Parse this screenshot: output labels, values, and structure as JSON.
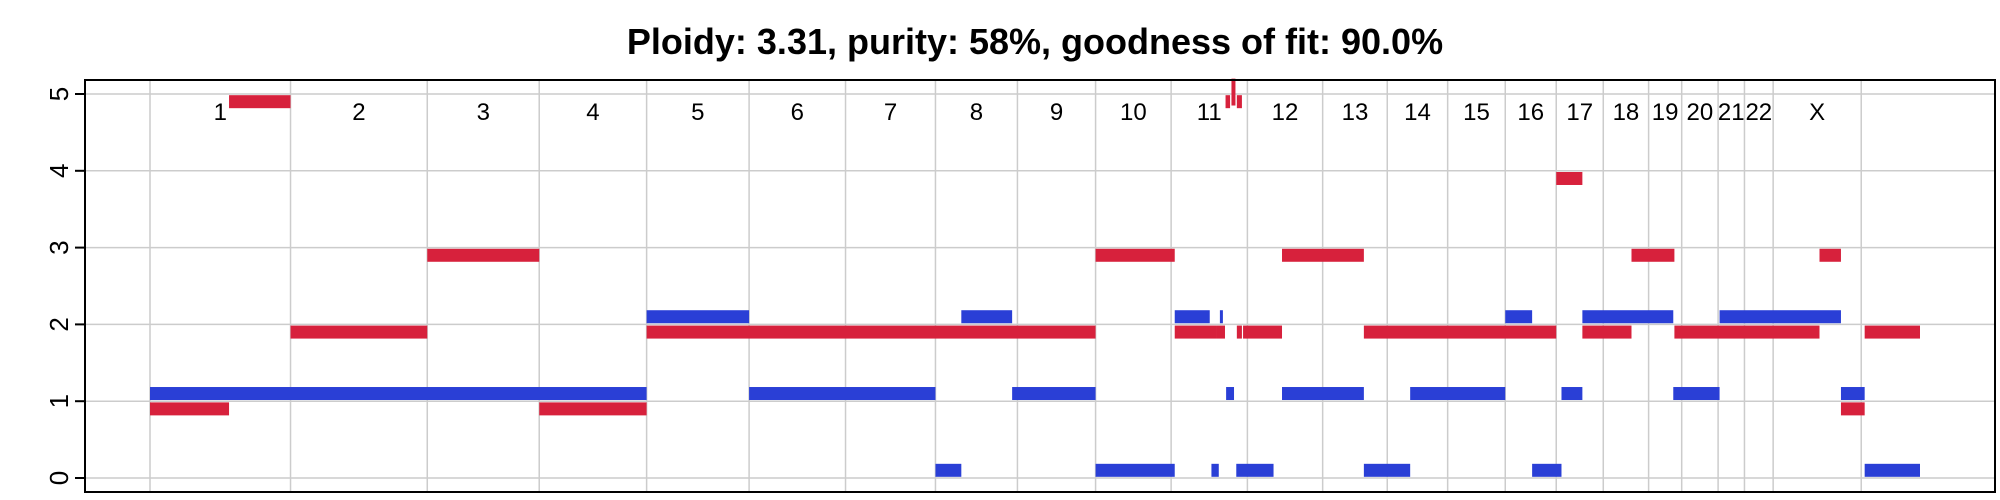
{
  "chart_data": {
    "type": "segments",
    "title": "Ploidy: 3.31, purity: 58%, goodness of fit: 90.0%",
    "xlabel": "",
    "ylabel": "",
    "ylim": [
      0,
      5
    ],
    "yticks": [
      "0",
      "1",
      "2",
      "3",
      "4",
      "5"
    ],
    "grid": true,
    "colors": {
      "major": "#d7213c",
      "minor": "#2a3fd6",
      "grid": "#cccccc",
      "frame": "#000000"
    },
    "chromosomes": [
      {
        "name": "1",
        "start": 0,
        "end": 248.9
      },
      {
        "name": "2",
        "start": 248.9,
        "end": 491.1
      },
      {
        "name": "3",
        "start": 491.1,
        "end": 689.4
      },
      {
        "name": "4",
        "start": 689.4,
        "end": 879.6
      },
      {
        "name": "5",
        "start": 879.6,
        "end": 1061.1
      },
      {
        "name": "6",
        "start": 1061.1,
        "end": 1231.9
      },
      {
        "name": "7",
        "start": 1231.9,
        "end": 1391.2
      },
      {
        "name": "8",
        "start": 1391.2,
        "end": 1536.4
      },
      {
        "name": "9",
        "start": 1536.4,
        "end": 1674.8
      },
      {
        "name": "10",
        "start": 1674.8,
        "end": 1808.6
      },
      {
        "name": "11",
        "start": 1808.6,
        "end": 1943.7
      },
      {
        "name": "12",
        "start": 1943.7,
        "end": 2077.0
      },
      {
        "name": "13",
        "start": 2077.0,
        "end": 2191.4
      },
      {
        "name": "14",
        "start": 2191.4,
        "end": 2298.4
      },
      {
        "name": "15",
        "start": 2298.4,
        "end": 2400.4
      },
      {
        "name": "16",
        "start": 2400.4,
        "end": 2490.7
      },
      {
        "name": "17",
        "start": 2490.7,
        "end": 2574.0
      },
      {
        "name": "18",
        "start": 2574.0,
        "end": 2654.3
      },
      {
        "name": "19",
        "start": 2654.3,
        "end": 2712.9
      },
      {
        "name": "20",
        "start": 2712.9,
        "end": 2777.4
      },
      {
        "name": "21",
        "start": 2777.4,
        "end": 2824.1
      },
      {
        "name": "22",
        "start": 2824.1,
        "end": 2874.9
      },
      {
        "name": "X",
        "start": 2874.9,
        "end": 3030.9
      }
    ],
    "series": [
      {
        "key": "major",
        "segments": [
          {
            "x0": 0,
            "x1": 140,
            "y": 0.9
          },
          {
            "x0": 140,
            "x1": 248.9,
            "y": 4.9
          },
          {
            "x0": 248.9,
            "x1": 491.1,
            "y": 1.9
          },
          {
            "x0": 491.1,
            "x1": 689.4,
            "y": 2.9
          },
          {
            "x0": 689.4,
            "x1": 879.6,
            "y": 0.9
          },
          {
            "x0": 879.6,
            "x1": 1674.8,
            "y": 1.9
          },
          {
            "x0": 1674.8,
            "x1": 1815,
            "y": 2.9
          },
          {
            "x0": 1815,
            "x1": 1889,
            "y": 1.9
          },
          {
            "x0": 1889,
            "x1": 1904,
            "y": 1.9
          },
          {
            "x0": 1905,
            "x1": 1913,
            "y": 4.9
          },
          {
            "x0": 1925,
            "x1": 1934,
            "y": 4.9
          },
          {
            "x0": 1925,
            "x1": 1934,
            "y": 1.9
          },
          {
            "x0": 1936,
            "x1": 2005,
            "y": 1.9
          },
          {
            "x0": 2005,
            "x1": 2150,
            "y": 2.9
          },
          {
            "x0": 2150,
            "x1": 2490.7,
            "y": 1.9
          },
          {
            "x0": 2490.7,
            "x1": 2537,
            "y": 3.9
          },
          {
            "x0": 2537,
            "x1": 2624,
            "y": 1.9
          },
          {
            "x0": 2624,
            "x1": 2700,
            "y": 2.9
          },
          {
            "x0": 2700,
            "x1": 2957,
            "y": 1.9
          },
          {
            "x0": 2957,
            "x1": 2995,
            "y": 2.9
          },
          {
            "x0": 2995,
            "x1": 3037,
            "y": 0.9
          },
          {
            "x0": 3037,
            "x1": 3135,
            "y": 1.9
          }
        ],
        "spikes": [
          {
            "x": 1919,
            "y0": 4.85,
            "y1": 5.2
          }
        ]
      },
      {
        "key": "minor",
        "segments": [
          {
            "x0": 0,
            "x1": 879.6,
            "y": 1.1
          },
          {
            "x0": 879.6,
            "x1": 1061.1,
            "y": 2.1
          },
          {
            "x0": 1061.1,
            "x1": 1391.2,
            "y": 1.1
          },
          {
            "x0": 1391.2,
            "x1": 1437,
            "y": 0.1
          },
          {
            "x0": 1437,
            "x1": 1527,
            "y": 2.1
          },
          {
            "x0": 1527,
            "x1": 1674.8,
            "y": 1.1
          },
          {
            "x0": 1674.8,
            "x1": 1815,
            "y": 0.1
          },
          {
            "x0": 1815,
            "x1": 1877,
            "y": 2.1
          },
          {
            "x0": 1880,
            "x1": 1893,
            "y": 0.1
          },
          {
            "x0": 1895,
            "x1": 1899,
            "y": 2.1
          },
          {
            "x0": 1906,
            "x1": 1920,
            "y": 1.1
          },
          {
            "x0": 1924,
            "x1": 1990,
            "y": 0.1
          },
          {
            "x0": 2005,
            "x1": 2150,
            "y": 1.1
          },
          {
            "x0": 2150,
            "x1": 2232,
            "y": 0.1
          },
          {
            "x0": 2232,
            "x1": 2400.4,
            "y": 1.1
          },
          {
            "x0": 2400.4,
            "x1": 2448,
            "y": 2.1
          },
          {
            "x0": 2448,
            "x1": 2500,
            "y": 0.1
          },
          {
            "x0": 2500,
            "x1": 2537,
            "y": 1.1
          },
          {
            "x0": 2537,
            "x1": 2698,
            "y": 2.1
          },
          {
            "x0": 2698,
            "x1": 2780,
            "y": 1.1
          },
          {
            "x0": 2780,
            "x1": 2995,
            "y": 2.1
          },
          {
            "x0": 2995,
            "x1": 3037,
            "y": 1.1
          },
          {
            "x0": 3037,
            "x1": 3135,
            "y": 0.1
          }
        ]
      }
    ]
  }
}
